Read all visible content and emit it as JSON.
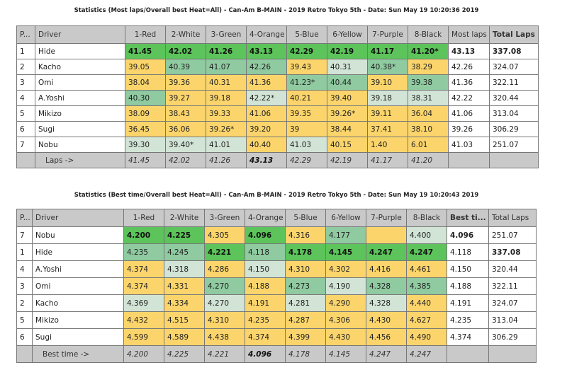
{
  "table1": {
    "title": "Statistics (Most laps/Overall best Heat=All) - Can-Am B-MAIN - 2019 Retro Tokyo 5th - Date: Sun May 19 10:20:36 2019",
    "headers": [
      "P...",
      "Driver",
      "1-Red",
      "2-White",
      "3-Green",
      "4-Orange",
      "5-Blue",
      "6-Yellow",
      "7-Purple",
      "8-Black",
      "Most laps",
      "Total Laps"
    ],
    "header_colors": [
      "#ef6a78",
      "#ffffff",
      "#5cc39a",
      "#f5895a",
      "#6cc3ee",
      "#f8d420",
      "#d67ad6",
      "#c9c9c9"
    ],
    "rows": [
      {
        "pos": "1",
        "driver": "Hide",
        "values": [
          "41.45",
          "42.02",
          "41.26",
          "43.13",
          "42.29",
          "42.19",
          "41.17",
          "41.20*"
        ],
        "colors": "GGGGGGGG",
        "best": "43.13",
        "total": "337.08",
        "best_bold": true,
        "total_bold": true
      },
      {
        "pos": "2",
        "driver": "Kacho",
        "values": [
          "39.05",
          "40.39",
          "41.07",
          "42.26",
          "39.43",
          "40.31",
          "40.38*",
          "38.29"
        ],
        "colors": "YMMMYLMY",
        "best": "42.26",
        "total": "324.07"
      },
      {
        "pos": "3",
        "driver": "Omi",
        "values": [
          "38.04",
          "39.36",
          "40.31",
          "41.36",
          "41.23*",
          "40.44",
          "39.10",
          "39.38"
        ],
        "colors": "YYYYMMYM",
        "best": "41.36",
        "total": "322.11"
      },
      {
        "pos": "4",
        "driver": "A.Yoshi",
        "values": [
          "40.30",
          "39.27",
          "39.18",
          "42.22*",
          "40.21",
          "39.40",
          "39.18",
          "38.31"
        ],
        "colors": "MYYLYYLL",
        "best": "42.22",
        "total": "320.44"
      },
      {
        "pos": "5",
        "driver": "Mikizo",
        "values": [
          "38.09",
          "38.43",
          "39.33",
          "41.06",
          "39.35",
          "39.26*",
          "39.11",
          "36.04"
        ],
        "colors": "YYYYYYYY",
        "best": "41.06",
        "total": "313.04"
      },
      {
        "pos": "6",
        "driver": "Sugi",
        "values": [
          "36.45",
          "36.06",
          "39.26*",
          "39.20",
          "39",
          "38.44",
          "37.41",
          "38.10"
        ],
        "colors": "YYYYYYYY",
        "best": "39.26",
        "total": "306.29"
      },
      {
        "pos": "7",
        "driver": "Nobu",
        "values": [
          "39.30",
          "39.40*",
          "41.01",
          "40.40",
          "41.03",
          "40.15",
          "1.40",
          "6.01"
        ],
        "colors": "LLLYLYYY",
        "best": "41.03",
        "total": "251.07"
      }
    ],
    "footer": {
      "label": "Laps ->",
      "values": [
        "41.45",
        "42.02",
        "41.26",
        "43.13",
        "42.29",
        "42.19",
        "41.17",
        "41.20"
      ],
      "bold_index": 3
    }
  },
  "table2": {
    "title": "Statistics (Best time/Overall best Heat=All) - Can-Am B-MAIN - 2019 Retro Tokyo 5th - Date: Sun May 19 10:20:43 2019",
    "headers": [
      "P...",
      "Driver",
      "1-Red",
      "2-White",
      "3-Green",
      "4-Orange",
      "5-Blue",
      "6-Yellow",
      "7-Purple",
      "8-Black",
      "Best ti...",
      "Total Laps"
    ],
    "rows": [
      {
        "pos": "7",
        "driver": "Nobu",
        "values": [
          "4.200",
          "4.225",
          "4.305",
          "4.096",
          "4.316",
          "4.177",
          "",
          "4.400"
        ],
        "colors": "GGYGYMYL",
        "best": "4.096",
        "total": "251.07",
        "best_bold": true
      },
      {
        "pos": "1",
        "driver": "Hide",
        "values": [
          "4.235",
          "4.245",
          "4.221",
          "4.118",
          "4.178",
          "4.145",
          "4.247",
          "4.247"
        ],
        "colors": "MMGMGGGG",
        "best": "4.118",
        "total": "337.08",
        "total_bold": true
      },
      {
        "pos": "4",
        "driver": "A.Yoshi",
        "values": [
          "4.374",
          "4.318",
          "4.286",
          "4.150",
          "4.310",
          "4.302",
          "4.416",
          "4.461"
        ],
        "colors": "YLYLYYYY",
        "best": "4.150",
        "total": "320.44"
      },
      {
        "pos": "3",
        "driver": "Omi",
        "values": [
          "4.374",
          "4.331",
          "4.270",
          "4.188",
          "4.273",
          "4.190",
          "4.328",
          "4.385"
        ],
        "colors": "YYMYMLMM",
        "best": "4.188",
        "total": "322.11"
      },
      {
        "pos": "2",
        "driver": "Kacho",
        "values": [
          "4.369",
          "4.334",
          "4.270",
          "4.191",
          "4.281",
          "4.290",
          "4.328",
          "4.440"
        ],
        "colors": "LYLYLYLY",
        "best": "4.191",
        "total": "324.07"
      },
      {
        "pos": "5",
        "driver": "Mikizo",
        "values": [
          "4.432",
          "4.515",
          "4.310",
          "4.235",
          "4.287",
          "4.306",
          "4.430",
          "4.627"
        ],
        "colors": "YYYYYYYY",
        "best": "4.235",
        "total": "313.04"
      },
      {
        "pos": "6",
        "driver": "Sugi",
        "values": [
          "4.599",
          "4.589",
          "4.438",
          "4.374",
          "4.399",
          "4.430",
          "4.456",
          "4.490"
        ],
        "colors": "YYYYYYYY",
        "best": "4.374",
        "total": "306.29"
      }
    ],
    "footer": {
      "label": "Best time ->",
      "values": [
        "4.200",
        "4.225",
        "4.221",
        "4.096",
        "4.178",
        "4.145",
        "4.247",
        "4.247"
      ],
      "bold_index": 3
    }
  }
}
